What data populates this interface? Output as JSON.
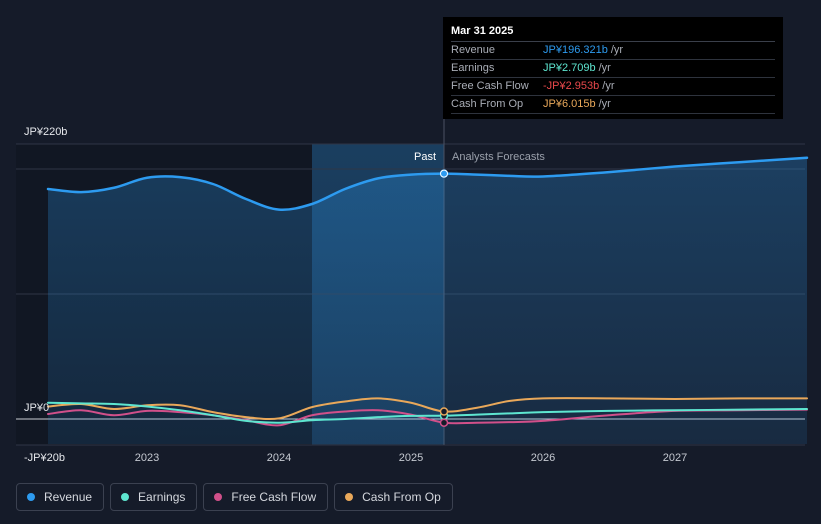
{
  "chart_data": {
    "type": "line",
    "title": "",
    "xlabel": "",
    "ylabel": "",
    "x_ticks": [
      {
        "label": "2023",
        "year": 2023.0
      },
      {
        "label": "2024",
        "year": 2024.0
      },
      {
        "label": "2025",
        "year": 2025.0
      },
      {
        "label": "2026",
        "year": 2026.0
      },
      {
        "label": "2027",
        "year": 2027.0
      }
    ],
    "xlim": [
      2022.25,
      2028.0
    ],
    "ylim": [
      -20,
      220
    ],
    "y_ticks": [
      {
        "label": "JP¥220b",
        "value": 220
      },
      {
        "label": "JP¥0",
        "value": 0
      },
      {
        "label": "-JP¥20b",
        "value": -20
      }
    ],
    "gridlines": [
      220,
      200,
      100,
      0
    ],
    "past_label": "Past",
    "forecast_label": "Analysts Forecasts",
    "divider_year": 2025.25,
    "highlight_start_year": 2024.25,
    "series": [
      {
        "name": "Revenue",
        "color": "#2d9bf0",
        "area": true,
        "points": [
          [
            2022.25,
            184
          ],
          [
            2022.5,
            181.5
          ],
          [
            2022.75,
            185
          ],
          [
            2023.0,
            193
          ],
          [
            2023.25,
            193.5
          ],
          [
            2023.5,
            188
          ],
          [
            2023.75,
            176
          ],
          [
            2024.0,
            167.5
          ],
          [
            2024.25,
            172
          ],
          [
            2024.5,
            184
          ],
          [
            2024.75,
            192.5
          ],
          [
            2025.0,
            195.5
          ],
          [
            2025.25,
            196.3
          ],
          [
            2025.5,
            195.5
          ],
          [
            2025.75,
            194.5
          ],
          [
            2026.0,
            194
          ],
          [
            2026.5,
            197.5
          ],
          [
            2027.0,
            202
          ],
          [
            2027.5,
            205.5
          ],
          [
            2028.0,
            209
          ]
        ]
      },
      {
        "name": "Earnings",
        "color": "#5ee6d0",
        "area": false,
        "points": [
          [
            2022.25,
            13
          ],
          [
            2022.5,
            12.5
          ],
          [
            2022.75,
            12
          ],
          [
            2023.0,
            10
          ],
          [
            2023.25,
            7
          ],
          [
            2023.5,
            3
          ],
          [
            2023.75,
            -1.5
          ],
          [
            2024.0,
            -3
          ],
          [
            2024.25,
            -1
          ],
          [
            2024.5,
            0
          ],
          [
            2024.75,
            1.5
          ],
          [
            2025.0,
            2.5
          ],
          [
            2025.25,
            2.7
          ],
          [
            2025.5,
            3.5
          ],
          [
            2025.75,
            4.5
          ],
          [
            2026.0,
            5.5
          ],
          [
            2026.5,
            6.5
          ],
          [
            2027.0,
            7
          ],
          [
            2027.5,
            7.5
          ],
          [
            2028.0,
            8
          ]
        ]
      },
      {
        "name": "Free Cash Flow",
        "color": "#d1508a",
        "area": false,
        "points": [
          [
            2022.25,
            4
          ],
          [
            2022.5,
            7
          ],
          [
            2022.75,
            3
          ],
          [
            2023.0,
            6.5
          ],
          [
            2023.25,
            5.5
          ],
          [
            2023.5,
            3
          ],
          [
            2023.75,
            -1
          ],
          [
            2024.0,
            -5
          ],
          [
            2024.25,
            3
          ],
          [
            2024.5,
            6
          ],
          [
            2024.75,
            7
          ],
          [
            2025.0,
            3.5
          ],
          [
            2025.25,
            -2.95
          ],
          [
            2025.5,
            -3
          ],
          [
            2025.75,
            -2.5
          ],
          [
            2026.0,
            -1.5
          ],
          [
            2026.5,
            3
          ],
          [
            2027.0,
            6.5
          ],
          [
            2027.5,
            7
          ],
          [
            2028.0,
            7.5
          ]
        ]
      },
      {
        "name": "Cash From Op",
        "color": "#e9a85a",
        "area": false,
        "points": [
          [
            2022.25,
            10
          ],
          [
            2022.5,
            12
          ],
          [
            2022.75,
            8
          ],
          [
            2023.0,
            11
          ],
          [
            2023.25,
            11
          ],
          [
            2023.5,
            5.5
          ],
          [
            2023.75,
            1.5
          ],
          [
            2024.0,
            0.5
          ],
          [
            2024.25,
            9.5
          ],
          [
            2024.5,
            14
          ],
          [
            2024.75,
            16.5
          ],
          [
            2025.0,
            13
          ],
          [
            2025.25,
            6.0
          ],
          [
            2025.5,
            9
          ],
          [
            2025.75,
            14.5
          ],
          [
            2026.0,
            16.5
          ],
          [
            2026.5,
            16.5
          ],
          [
            2027.0,
            16
          ],
          [
            2027.5,
            16.5
          ],
          [
            2028.0,
            16.5
          ]
        ]
      }
    ],
    "tooltip": {
      "date": "Mar 31 2025",
      "rows": [
        {
          "label": "Revenue",
          "value": "JP¥196.321b",
          "unit": "/yr",
          "color": "#2d9bf0"
        },
        {
          "label": "Earnings",
          "value": "JP¥2.709b",
          "unit": "/yr",
          "color": "#5ee6d0"
        },
        {
          "label": "Free Cash Flow",
          "value": "-JP¥2.953b",
          "unit": "/yr",
          "color": "#e8484b"
        },
        {
          "label": "Cash From Op",
          "value": "JP¥6.015b",
          "unit": "/yr",
          "color": "#e9a85a"
        }
      ]
    },
    "legend": [
      {
        "label": "Revenue",
        "color": "#2d9bf0"
      },
      {
        "label": "Earnings",
        "color": "#5ee6d0"
      },
      {
        "label": "Free Cash Flow",
        "color": "#d1508a"
      },
      {
        "label": "Cash From Op",
        "color": "#e9a85a"
      }
    ]
  }
}
